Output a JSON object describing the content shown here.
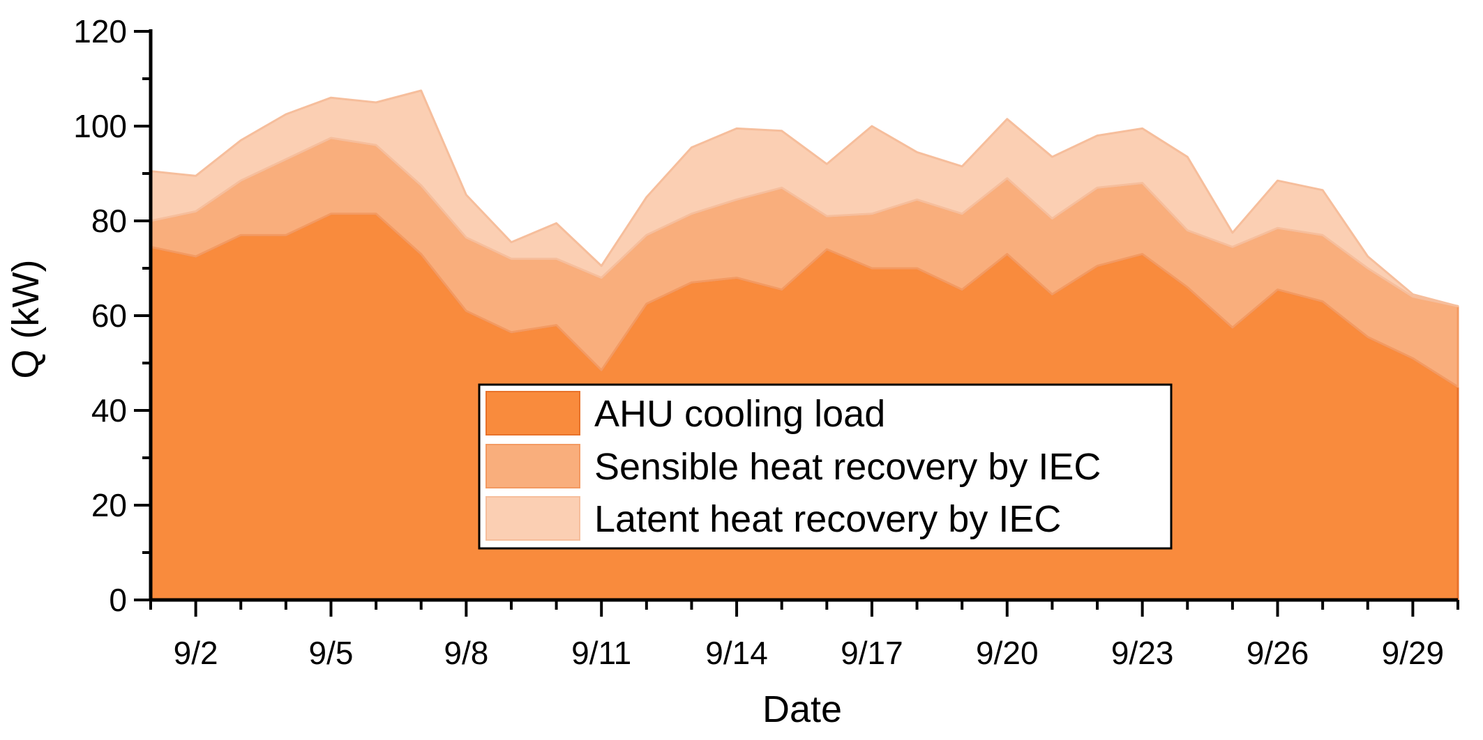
{
  "chart_data": {
    "type": "area",
    "stacked": true,
    "title": "",
    "xlabel": "Date",
    "ylabel": "Q (kW)",
    "ylim": [
      0,
      120
    ],
    "yticks": [
      0,
      20,
      40,
      60,
      80,
      100,
      120
    ],
    "xlim": [
      1,
      30
    ],
    "xtick_positions": [
      2,
      5,
      8,
      11,
      14,
      17,
      20,
      23,
      26,
      29
    ],
    "xtick_labels": [
      "9/2",
      "9/5",
      "9/8",
      "9/11",
      "9/14",
      "9/17",
      "9/20",
      "9/23",
      "9/26",
      "9/29"
    ],
    "x": [
      1,
      2,
      3,
      4,
      5,
      6,
      7,
      8,
      9,
      10,
      11,
      12,
      13,
      14,
      15,
      16,
      17,
      18,
      19,
      20,
      21,
      22,
      23,
      24,
      25,
      26,
      27,
      28,
      29,
      30
    ],
    "series": [
      {
        "name": "AHU cooling load",
        "color": "#F98B3D",
        "values": [
          74.5,
          72.5,
          77,
          77,
          81.5,
          81.5,
          73,
          61,
          56.5,
          58,
          48.5,
          62.5,
          67,
          68,
          65.5,
          74,
          70,
          70,
          65.5,
          73,
          64.5,
          70.5,
          73,
          66,
          57.5,
          65.5,
          63,
          55.5,
          51,
          45
        ]
      },
      {
        "name": "Sensible heat recovery by IEC",
        "color": "#F9AE7C",
        "values": [
          5.5,
          9.5,
          11.5,
          16,
          16,
          14.5,
          14.5,
          15.5,
          15.5,
          14,
          19.5,
          14.5,
          14.5,
          16.5,
          21.5,
          7,
          11.5,
          14.5,
          16,
          16,
          16,
          16.5,
          15,
          12,
          17,
          13,
          14,
          14.5,
          13,
          17
        ]
      },
      {
        "name": "Latent heat recovery by IEC",
        "color": "#FBCFB3",
        "values": [
          10.5,
          7.5,
          8.5,
          9.5,
          8.5,
          9,
          20,
          9,
          3.5,
          7.5,
          2.5,
          8,
          14,
          15,
          12,
          11,
          18.5,
          10,
          10,
          12.5,
          13,
          11,
          11.5,
          15.5,
          3,
          10,
          9.5,
          2.5,
          0.5,
          0
        ]
      }
    ],
    "legend": {
      "position": "center-bottom",
      "entries": [
        "AHU cooling load",
        "Sensible heat recovery by IEC",
        "Latent heat recovery by IEC"
      ]
    }
  }
}
